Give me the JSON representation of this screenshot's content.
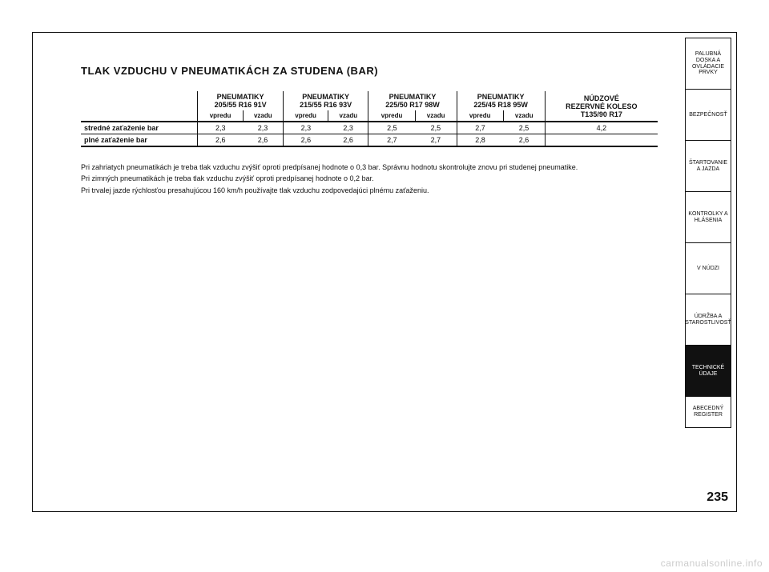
{
  "title": "TLAK VZDUCHU V PNEUMATIKÁCH ZA STUDENA (BAR)",
  "table": {
    "row_label_header": "",
    "groups": [
      {
        "line1": "PNEUMATIKY",
        "line2": "205/55 R16 91V"
      },
      {
        "line1": "PNEUMATIKY",
        "line2": "215/55 R16 93V"
      },
      {
        "line1": "PNEUMATIKY",
        "line2": "225/50 R17 98W"
      },
      {
        "line1": "PNEUMATIKY",
        "line2": "225/45 R18 95W"
      }
    ],
    "spare": {
      "line1": "NÚDZOVÉ",
      "line2": "REZERVNÉ KOLESO",
      "line3": "T135/90 R17"
    },
    "sub_headers": [
      "vpredu",
      "vzadu"
    ],
    "rows": [
      {
        "label": "stredné zaťaženie bar",
        "values": [
          "2,3",
          "2,3",
          "2,3",
          "2,3",
          "2,5",
          "2,5",
          "2,7",
          "2,5"
        ],
        "spare": "4,2"
      },
      {
        "label": "plné zaťaženie bar",
        "values": [
          "2,6",
          "2,6",
          "2,6",
          "2,6",
          "2,7",
          "2,7",
          "2,8",
          "2,6"
        ],
        "spare": ""
      }
    ]
  },
  "notes": [
    "Pri zahriatych pneumatikách je treba tlak vzduchu zvýšiť oproti predpísanej hodnote o 0,3 bar. Správnu hodnotu skontrolujte znovu pri studenej pneumatike.",
    "Pri zimných pneumatikách je treba tlak vzduchu zvýšiť oproti predpísanej hodnote o 0,2 bar.",
    "Pri trvalej jazde rýchlosťou presahujúcou 160 km/h používajte tlak vzduchu zodpovedajúci plnému zaťaženiu."
  ],
  "tabs": [
    "PALUBNÁ DOSKA A OVLÁDACIE PRVKY",
    "BEZPEČNOSŤ",
    "ŠTARTOVANIE A JAZDA",
    "KONTROLKY A HLÁSENIA",
    "V NÚDZI",
    "ÚDRŽBA A STAROSTLIVOSŤ",
    "TECHNICKÉ ÚDAJE",
    "ABECEDNÝ REGISTER"
  ],
  "active_tab_index": 6,
  "page_number": "235",
  "watermark": "carmanualsonline.info",
  "colors": {
    "text": "#111111",
    "bg": "#ffffff",
    "watermark": "#cccccc"
  }
}
